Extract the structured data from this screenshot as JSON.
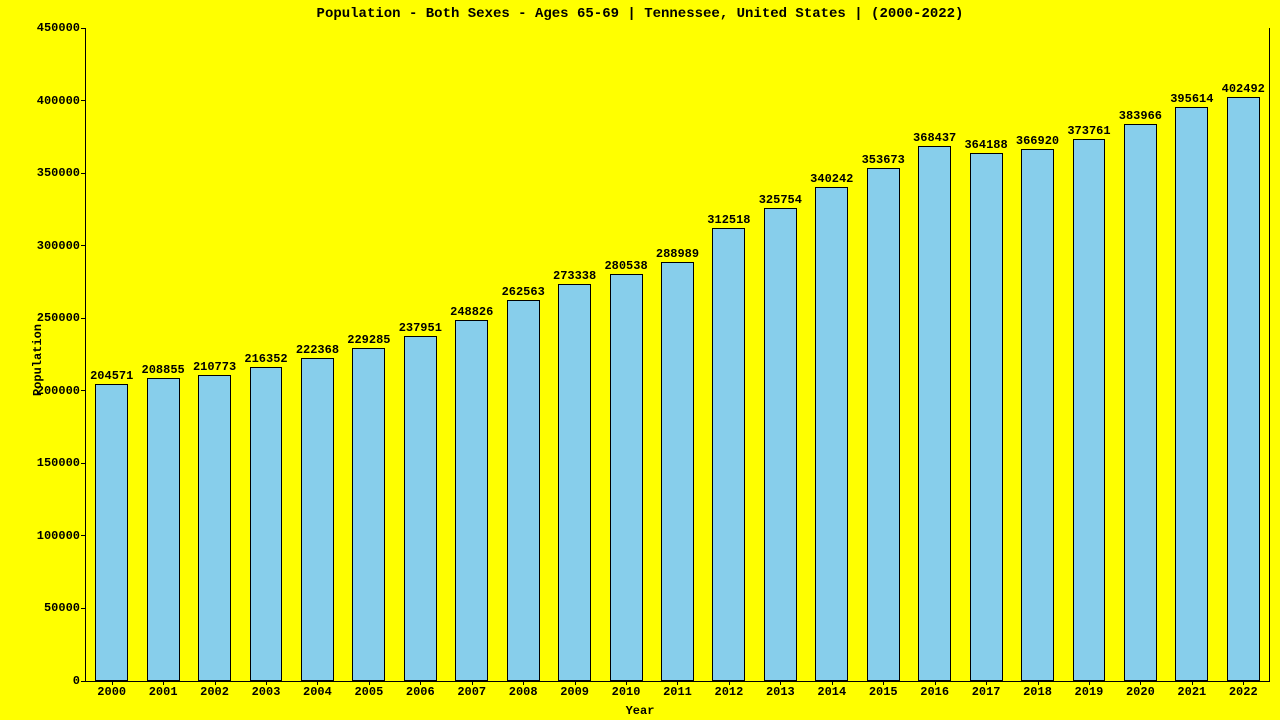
{
  "chart": {
    "type": "bar",
    "title": "Population - Both Sexes - Ages 65-69 | Tennessee, United States |  (2000-2022)",
    "xlabel": "Year",
    "ylabel": "Population",
    "title_fontsize": 14,
    "label_fontsize": 12,
    "tick_fontsize": 12,
    "value_fontsize": 12,
    "background_color": "#ffff00",
    "bar_color": "#87ceeb",
    "bar_border_color": "#000000",
    "axis_color": "#000000",
    "text_color": "#000000",
    "bar_width": 0.64,
    "y": {
      "min": 0,
      "max": 450000,
      "step": 50000,
      "ticks": [
        0,
        50000,
        100000,
        150000,
        200000,
        250000,
        300000,
        350000,
        400000,
        450000
      ]
    },
    "categories": [
      "2000",
      "2001",
      "2002",
      "2003",
      "2004",
      "2005",
      "2006",
      "2007",
      "2008",
      "2009",
      "2010",
      "2011",
      "2012",
      "2013",
      "2014",
      "2015",
      "2016",
      "2017",
      "2018",
      "2019",
      "2020",
      "2021",
      "2022"
    ],
    "values": [
      204571,
      208855,
      210773,
      216352,
      222368,
      229285,
      237951,
      248826,
      262563,
      273338,
      280538,
      288989,
      312518,
      325754,
      340242,
      353673,
      368437,
      364188,
      366920,
      373761,
      383966,
      395614,
      402492
    ]
  }
}
